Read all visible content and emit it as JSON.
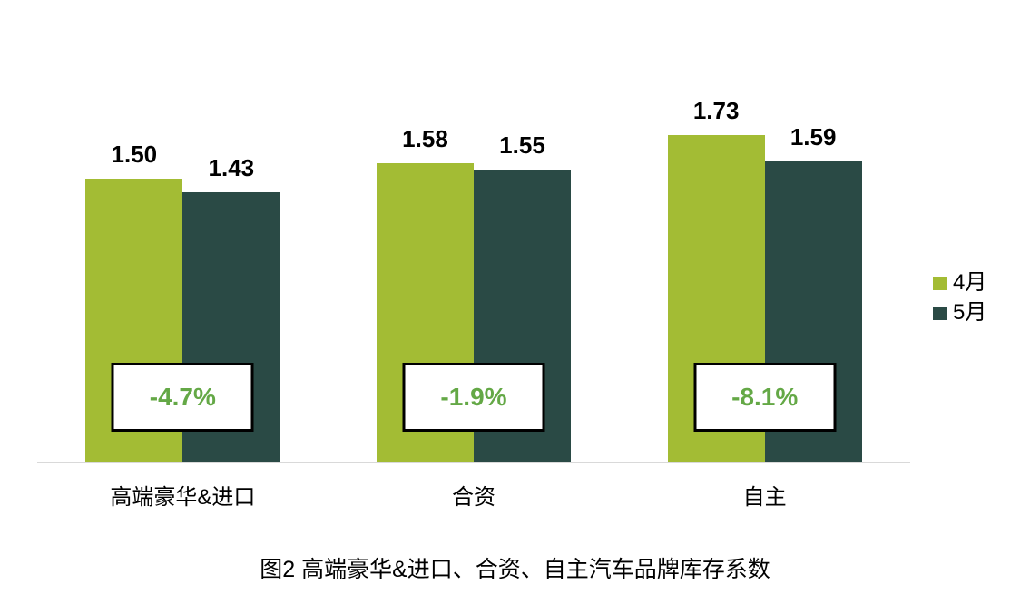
{
  "chart_data": {
    "type": "bar",
    "categories": [
      "高端豪华&进口",
      "合资",
      "自主"
    ],
    "series": [
      {
        "name": "4月",
        "color": "#a3bc34",
        "values": [
          1.5,
          1.58,
          1.73
        ],
        "value_labels": [
          "1.50",
          "1.58",
          "1.73"
        ]
      },
      {
        "name": "5月",
        "color": "#2a4a45",
        "values": [
          1.43,
          1.55,
          1.59
        ],
        "value_labels": [
          "1.43",
          "1.55",
          "1.59"
        ]
      }
    ],
    "change_labels": [
      "-4.7%",
      "-1.9%",
      "-8.1%"
    ],
    "change_label_color": "#64a846",
    "title": "图2 高端豪华&进口、合资、自主汽车品牌库存系数",
    "xlabel": "",
    "ylabel": "",
    "ylim": [
      0,
      1.8
    ],
    "grid": false,
    "legend_position": "right",
    "axis_line_color": "#d9d9d9",
    "background_color": "#ffffff"
  }
}
